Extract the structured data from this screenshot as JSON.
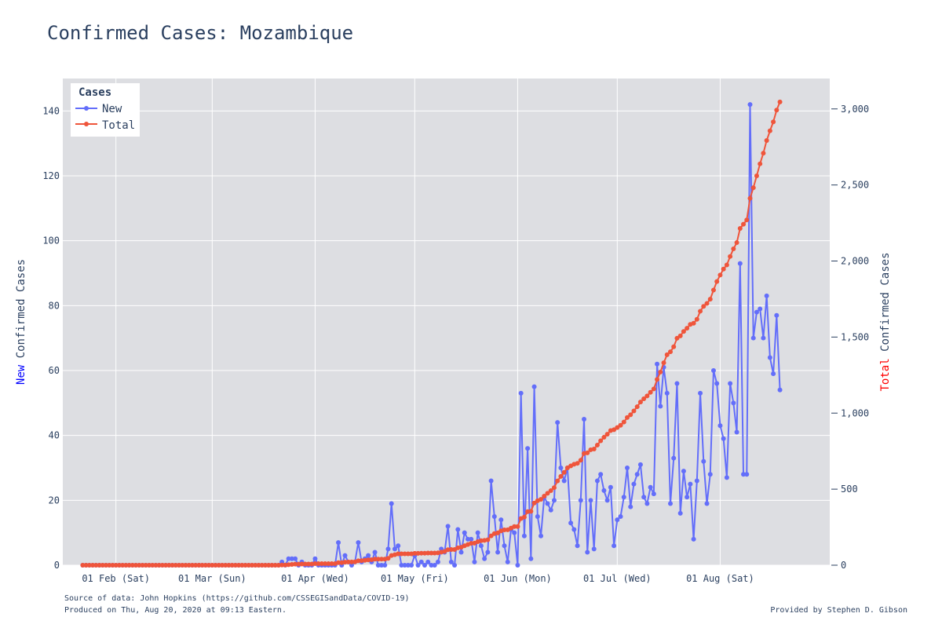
{
  "chart_data": {
    "type": "line",
    "title": "Confirmed Cases: Mozambique",
    "y_left_label": {
      "highlight": "New",
      "rest": " Confirmed Cases",
      "highlight_color": "#0000ff"
    },
    "y_right_label": {
      "highlight": "Total",
      "rest": " Confirmed Cases",
      "highlight_color": "#ff0000"
    },
    "x_start": "2020-01-22",
    "x_range": [
      "2020-01-16",
      "2020-09-03"
    ],
    "x_ticks": [
      {
        "date": "2020-02-01",
        "label": "01 Feb (Sat)"
      },
      {
        "date": "2020-03-01",
        "label": "01 Mar (Sun)"
      },
      {
        "date": "2020-04-01",
        "label": "01 Apr (Wed)"
      },
      {
        "date": "2020-05-01",
        "label": "01 May (Fri)"
      },
      {
        "date": "2020-06-01",
        "label": "01 Jun (Mon)"
      },
      {
        "date": "2020-07-01",
        "label": "01 Jul (Wed)"
      },
      {
        "date": "2020-08-01",
        "label": "01 Aug (Sat)"
      }
    ],
    "y_left_range": [
      0,
      150
    ],
    "y_left_ticks": [
      0,
      20,
      40,
      60,
      80,
      100,
      120,
      140
    ],
    "y_right_range": [
      0,
      3200
    ],
    "y_right_ticks": [
      {
        "value": 0,
        "label": "0"
      },
      {
        "value": 500,
        "label": "500"
      },
      {
        "value": 1000,
        "label": "1,000"
      },
      {
        "value": 1500,
        "label": "1,500"
      },
      {
        "value": 2000,
        "label": "2,000"
      },
      {
        "value": 2500,
        "label": "2,500"
      },
      {
        "value": 3000,
        "label": "3,000"
      }
    ],
    "legend": {
      "title": "Cases",
      "position": "top-left"
    },
    "grid": true,
    "series": [
      {
        "name": "New",
        "axis": "left",
        "color": "#636efa",
        "values": [
          0,
          0,
          0,
          0,
          0,
          0,
          0,
          0,
          0,
          0,
          0,
          0,
          0,
          0,
          0,
          0,
          0,
          0,
          0,
          0,
          0,
          0,
          0,
          0,
          0,
          0,
          0,
          0,
          0,
          0,
          0,
          0,
          0,
          0,
          0,
          0,
          0,
          0,
          0,
          0,
          0,
          0,
          0,
          0,
          0,
          0,
          0,
          0,
          0,
          0,
          0,
          0,
          0,
          0,
          0,
          0,
          0,
          0,
          0,
          0,
          1,
          0,
          2,
          2,
          2,
          0,
          1,
          0,
          0,
          0,
          2,
          0,
          0,
          0,
          0,
          0,
          0,
          7,
          0,
          3,
          1,
          0,
          1,
          7,
          1,
          2,
          3,
          1,
          4,
          0,
          0,
          0,
          5,
          19,
          5,
          6,
          0,
          0,
          0,
          0,
          3,
          0,
          1,
          0,
          1,
          0,
          0,
          1,
          5,
          4,
          12,
          1,
          0,
          11,
          4,
          10,
          8,
          8,
          1,
          10,
          6,
          2,
          4,
          26,
          15,
          4,
          14,
          6,
          1,
          11,
          10,
          0,
          53,
          9,
          36,
          2,
          55,
          15,
          9,
          21,
          19,
          17,
          20,
          44,
          30,
          26,
          30,
          13,
          11,
          6,
          20,
          45,
          4,
          20,
          5,
          26,
          28,
          23,
          20,
          24,
          6,
          14,
          15,
          21,
          30,
          18,
          25,
          28,
          31,
          21,
          19,
          24,
          22,
          62,
          49,
          61,
          53,
          19,
          33,
          56,
          16,
          29,
          21,
          25,
          8,
          26,
          53,
          32,
          19,
          28,
          60,
          56,
          43,
          39,
          27,
          56,
          50,
          41,
          93,
          28,
          28,
          142,
          70,
          78,
          79,
          70,
          83,
          64,
          59,
          77,
          54
        ]
      },
      {
        "name": "Total",
        "axis": "right",
        "color": "#ef553b",
        "values": [
          0,
          0,
          0,
          0,
          0,
          0,
          0,
          0,
          0,
          0,
          0,
          0,
          0,
          0,
          0,
          0,
          0,
          0,
          0,
          0,
          0,
          0,
          0,
          0,
          0,
          0,
          0,
          0,
          0,
          0,
          0,
          0,
          0,
          0,
          0,
          0,
          0,
          0,
          0,
          0,
          0,
          0,
          0,
          0,
          0,
          0,
          0,
          0,
          0,
          0,
          0,
          0,
          0,
          0,
          0,
          0,
          0,
          0,
          0,
          0,
          1,
          1,
          3,
          5,
          7,
          7,
          8,
          8,
          8,
          8,
          10,
          10,
          10,
          10,
          10,
          10,
          10,
          17,
          17,
          20,
          21,
          21,
          22,
          29,
          30,
          32,
          35,
          36,
          40,
          40,
          40,
          40,
          45,
          64,
          69,
          75,
          75,
          75,
          75,
          75,
          78,
          78,
          79,
          79,
          80,
          80,
          80,
          81,
          86,
          90,
          102,
          103,
          103,
          114,
          118,
          128,
          136,
          144,
          145,
          155,
          161,
          163,
          167,
          193,
          208,
          212,
          226,
          232,
          233,
          244,
          254,
          254,
          307,
          316,
          352,
          354,
          409,
          424,
          433,
          454,
          473,
          490,
          510,
          554,
          584,
          610,
          640,
          653,
          664,
          670,
          690,
          735,
          739,
          759,
          764,
          790,
          818,
          841,
          861,
          885,
          891,
          905,
          920,
          941,
          971,
          989,
          1014,
          1042,
          1073,
          1094,
          1113,
          1137,
          1159,
          1221,
          1270,
          1331,
          1384,
          1403,
          1436,
          1492,
          1508,
          1537,
          1558,
          1583,
          1591,
          1617,
          1670,
          1702,
          1721,
          1749,
          1809,
          1865,
          1908,
          1947,
          1974,
          2030,
          2080,
          2121,
          2214,
          2242,
          2270,
          2412,
          2482,
          2560,
          2639,
          2709,
          2792,
          2856,
          2915,
          2992,
          3046
        ]
      }
    ]
  },
  "footer": {
    "source": "Source of data: John Hopkins (https://github.com/CSSEGISandData/COVID-19)",
    "produced": "Produced on Thu, Aug 20, 2020 at 09:13 Eastern.",
    "credit": "Provided by Stephen D. Gibson"
  }
}
